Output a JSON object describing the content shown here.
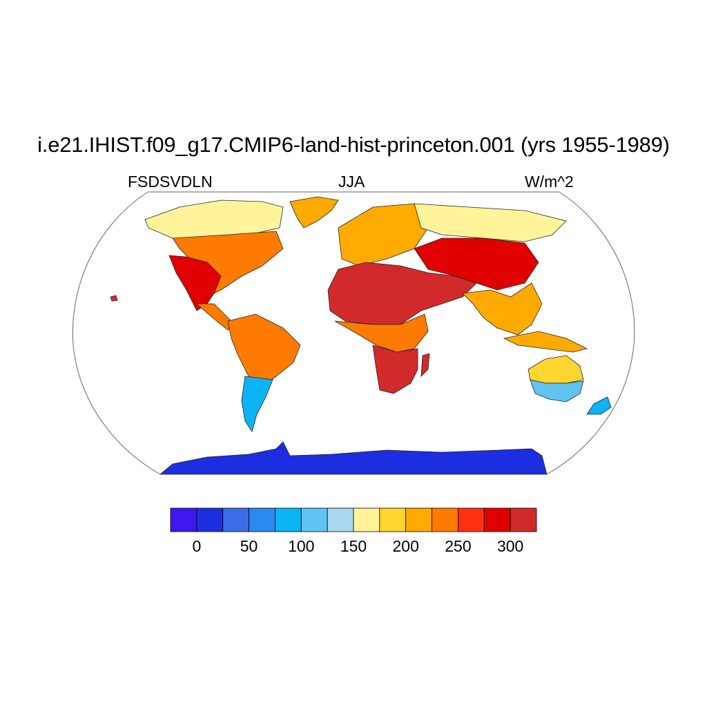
{
  "title": "i.e21.IHIST.f09_g17.CMIP6-land-hist-princeton.001 (yrs 1955-1989)",
  "subtitle_left": "FSDSVDLN",
  "subtitle_center": "JJA",
  "subtitle_right": "W/m^2",
  "projection": "Robinson",
  "colorbar": {
    "ticks": [
      "0",
      "50",
      "100",
      "150",
      "200",
      "250",
      "300"
    ],
    "levels": [
      -25,
      0,
      25,
      50,
      75,
      100,
      125,
      150,
      175,
      200,
      225,
      250,
      275,
      300,
      325
    ],
    "colors": [
      "#4016f0",
      "#1c2ee0",
      "#3b6ee6",
      "#2a8af0",
      "#0cb4f5",
      "#5fc4f2",
      "#aad8f0",
      "#fff49a",
      "#ffd630",
      "#ffaa00",
      "#ff7a00",
      "#ff3010",
      "#e00000",
      "#d22a2a"
    ]
  },
  "regions": [
    {
      "name": "north-america-west",
      "value": 290
    },
    {
      "name": "north-america-east",
      "value": 240
    },
    {
      "name": "canada-arctic",
      "value": 150
    },
    {
      "name": "greenland",
      "value": 200
    },
    {
      "name": "south-america-north",
      "value": 235
    },
    {
      "name": "south-america-south",
      "value": 90
    },
    {
      "name": "europe",
      "value": 215
    },
    {
      "name": "sahara-arabia",
      "value": 310
    },
    {
      "name": "central-africa",
      "value": 240
    },
    {
      "name": "southern-africa",
      "value": 300
    },
    {
      "name": "siberia",
      "value": 160
    },
    {
      "name": "central-asia",
      "value": 280
    },
    {
      "name": "south-east-asia",
      "value": 220
    },
    {
      "name": "australia-north",
      "value": 185
    },
    {
      "name": "australia-south",
      "value": 110
    },
    {
      "name": "new-zealand",
      "value": 80
    },
    {
      "name": "antarctica",
      "value": 10
    }
  ]
}
